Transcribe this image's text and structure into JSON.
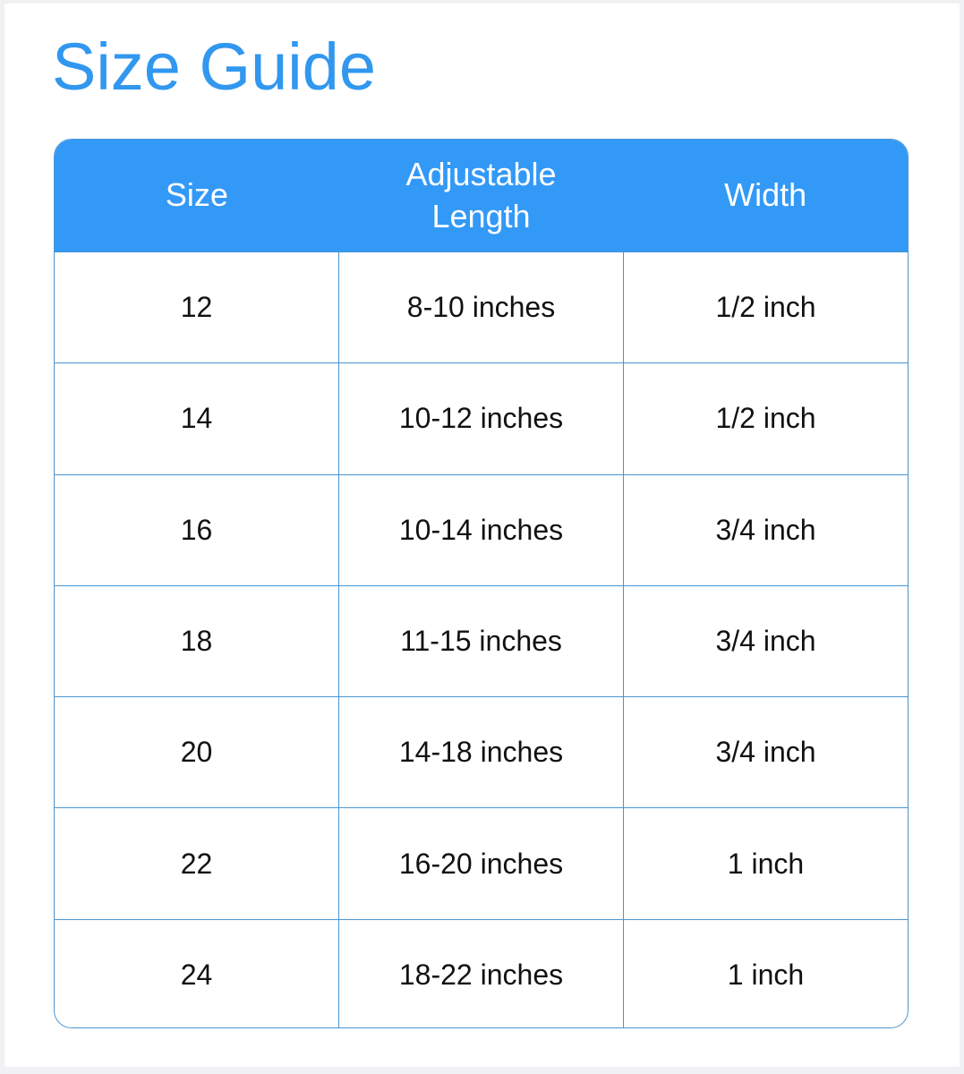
{
  "title": "Size Guide",
  "headers": [
    "Size",
    "Adjustable\nLength",
    "Width"
  ],
  "rows": [
    [
      "12",
      "8-10 inches",
      "1/2 inch"
    ],
    [
      "14",
      "10-12 inches",
      "1/2 inch"
    ],
    [
      "16",
      "10-14 inches",
      "3/4 inch"
    ],
    [
      "18",
      "11-15 inches",
      "3/4 inch"
    ],
    [
      "20",
      "14-18 inches",
      "3/4 inch"
    ],
    [
      "22",
      "16-20 inches",
      "1 inch"
    ],
    [
      "24",
      "18-22 inches",
      "1 inch"
    ]
  ],
  "colors": {
    "accent": "#3399f7",
    "border": "#4a95d2",
    "title": "#3197ef"
  }
}
